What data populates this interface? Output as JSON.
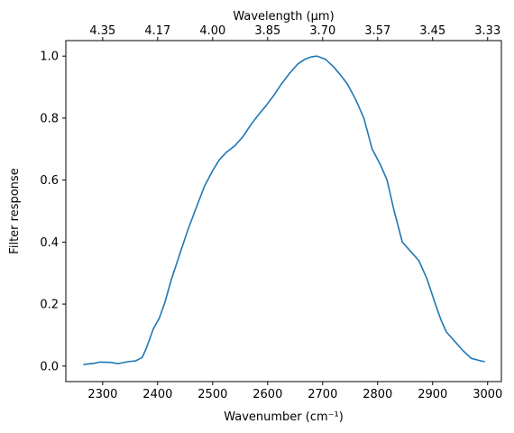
{
  "chart_data": {
    "type": "line",
    "title": "",
    "xlabel": "Wavenumber (cm⁻¹)",
    "ylabel": "Filter response",
    "x2label": "Wavelength (μm)",
    "xlim": [
      2233,
      3025
    ],
    "ylim": [
      -0.05,
      1.05
    ],
    "x_ticks": [
      2300,
      2400,
      2500,
      2600,
      2700,
      2800,
      2900,
      3000
    ],
    "y_ticks": [
      0.0,
      0.2,
      0.4,
      0.6,
      0.8,
      1.0
    ],
    "y_tick_labels": [
      "0.0",
      "0.2",
      "0.4",
      "0.6",
      "0.8",
      "1.0"
    ],
    "x2_tick_labels": [
      "4.35",
      "4.17",
      "4.00",
      "3.85",
      "3.70",
      "3.57",
      "3.45",
      "3.33"
    ],
    "grid": false,
    "series": [
      {
        "color": "#1f77b4",
        "x": [
          2265,
          2285,
          2295,
          2315,
          2328,
          2345,
          2360,
          2372,
          2380,
          2392,
          2403,
          2413,
          2425,
          2440,
          2455,
          2470,
          2485,
          2500,
          2512,
          2525,
          2540,
          2555,
          2570,
          2583,
          2597,
          2612,
          2625,
          2640,
          2655,
          2668,
          2680,
          2690,
          2705,
          2720,
          2732,
          2745,
          2760,
          2775,
          2790,
          2805,
          2817,
          2830,
          2845,
          2860,
          2875,
          2890,
          2905,
          2915,
          2925,
          2940,
          2955,
          2970,
          2985,
          2995
        ],
        "y": [
          0.005,
          0.009,
          0.013,
          0.012,
          0.008,
          0.014,
          0.017,
          0.028,
          0.06,
          0.12,
          0.155,
          0.205,
          0.28,
          0.36,
          0.44,
          0.51,
          0.58,
          0.63,
          0.665,
          0.69,
          0.71,
          0.74,
          0.78,
          0.81,
          0.84,
          0.875,
          0.91,
          0.945,
          0.975,
          0.99,
          0.998,
          1.0,
          0.99,
          0.965,
          0.94,
          0.91,
          0.86,
          0.8,
          0.7,
          0.65,
          0.6,
          0.5,
          0.4,
          0.37,
          0.34,
          0.28,
          0.2,
          0.15,
          0.11,
          0.08,
          0.05,
          0.025,
          0.018,
          0.014
        ]
      }
    ]
  }
}
